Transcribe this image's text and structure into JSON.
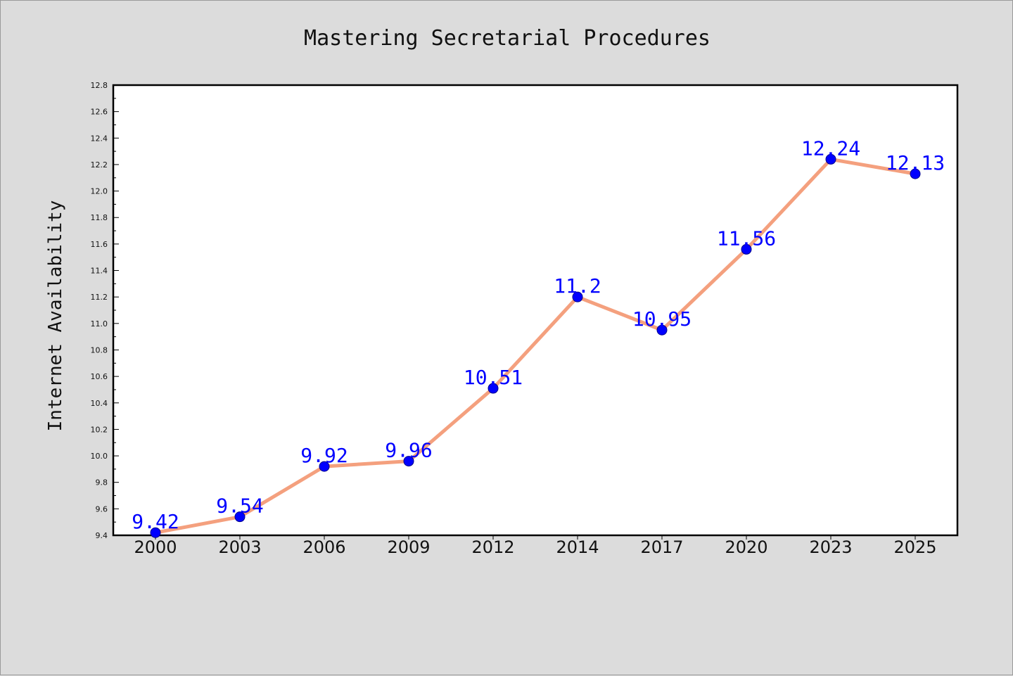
{
  "colors": {
    "background": "#dcdcdc",
    "plot_background": "#ffffff",
    "line": "#f4a07e",
    "marker": "#0000ff",
    "data_label": "#0000ff",
    "axis": "#000000"
  },
  "chart_data": {
    "type": "line",
    "title": "Mastering Secretarial Procedures",
    "xlabel": "",
    "ylabel": "Internet Availability",
    "categories": [
      "2000",
      "2003",
      "2006",
      "2009",
      "2012",
      "2014",
      "2017",
      "2020",
      "2023",
      "2025"
    ],
    "series": [
      {
        "values": [
          9.42,
          9.54,
          9.92,
          9.96,
          10.51,
          11.2,
          10.95,
          11.56,
          12.24,
          12.13
        ],
        "data_labels": [
          "9.42",
          "9.54",
          "9.92",
          "9.96",
          "10.51",
          "11.2",
          "10.95",
          "11.56",
          "12.24",
          "12.13"
        ]
      }
    ],
    "ylim": [
      9.4,
      12.8
    ],
    "yticks": [
      "9.4",
      "9.6",
      "9.8",
      "10.0",
      "10.2",
      "10.4",
      "10.6",
      "10.8",
      "11.0",
      "11.2",
      "11.4",
      "11.6",
      "11.8",
      "12.0",
      "12.2",
      "12.4",
      "12.6",
      "12.8"
    ],
    "grid": false,
    "legend": "none"
  }
}
